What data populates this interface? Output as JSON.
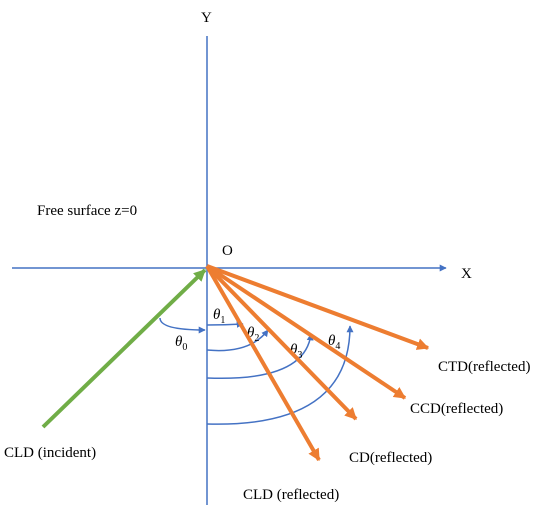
{
  "axes": {
    "x_label": "X",
    "y_label": "Y",
    "origin_label": "O"
  },
  "surface_label": "Free surface z=0",
  "angles": [
    {
      "symbol": "θ",
      "subscript": "0"
    },
    {
      "symbol": "θ",
      "subscript": "1"
    },
    {
      "symbol": "θ",
      "subscript": "2"
    },
    {
      "symbol": "θ",
      "subscript": "3"
    },
    {
      "symbol": "θ",
      "subscript": "4"
    }
  ],
  "waves": {
    "incident": "CLD (incident)",
    "cld_reflected": "CLD (reflected)",
    "cd_reflected": "CD(reflected)",
    "ccd_reflected": "CCD(reflected)",
    "ctd_reflected": "CTD(reflected)"
  },
  "colors": {
    "axis": "#4472C4",
    "incident": "#70AD47",
    "reflected": "#ED7D31",
    "text": "#000000"
  }
}
